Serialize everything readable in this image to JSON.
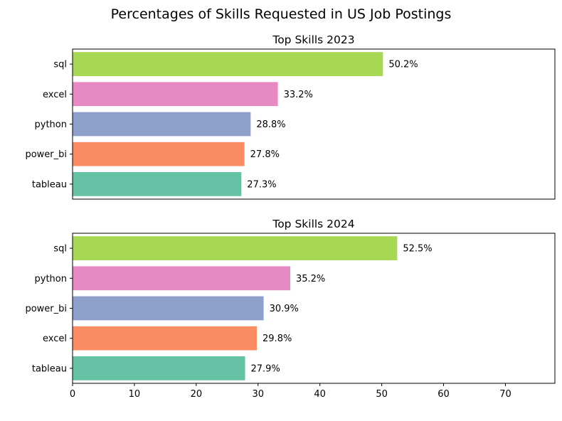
{
  "figure_title": "Percentages of Skills Requested in US Job Postings",
  "chart_data": [
    {
      "type": "bar",
      "orientation": "horizontal",
      "title": "Top Skills 2023",
      "categories": [
        "sql",
        "excel",
        "python",
        "power_bi",
        "tableau"
      ],
      "values": [
        50.2,
        33.2,
        28.8,
        27.8,
        27.3
      ],
      "data_labels": [
        "50.2%",
        "33.2%",
        "28.8%",
        "27.8%",
        "27.3%"
      ],
      "colors": [
        "#a6d854",
        "#e78ac3",
        "#8da0cb",
        "#fc8d62",
        "#66c2a5"
      ],
      "xlim": [
        0,
        78
      ],
      "xticks_visible": false,
      "grid": false
    },
    {
      "type": "bar",
      "orientation": "horizontal",
      "title": "Top Skills 2024",
      "categories": [
        "sql",
        "python",
        "power_bi",
        "excel",
        "tableau"
      ],
      "values": [
        52.5,
        35.2,
        30.9,
        29.8,
        27.9
      ],
      "data_labels": [
        "52.5%",
        "35.2%",
        "30.9%",
        "29.8%",
        "27.9%"
      ],
      "colors": [
        "#a6d854",
        "#e78ac3",
        "#8da0cb",
        "#fc8d62",
        "#66c2a5"
      ],
      "xlim": [
        0,
        78
      ],
      "xticks": [
        "0",
        "10",
        "20",
        "30",
        "40",
        "50",
        "60",
        "70"
      ],
      "xticks_visible": true,
      "grid": false
    }
  ]
}
